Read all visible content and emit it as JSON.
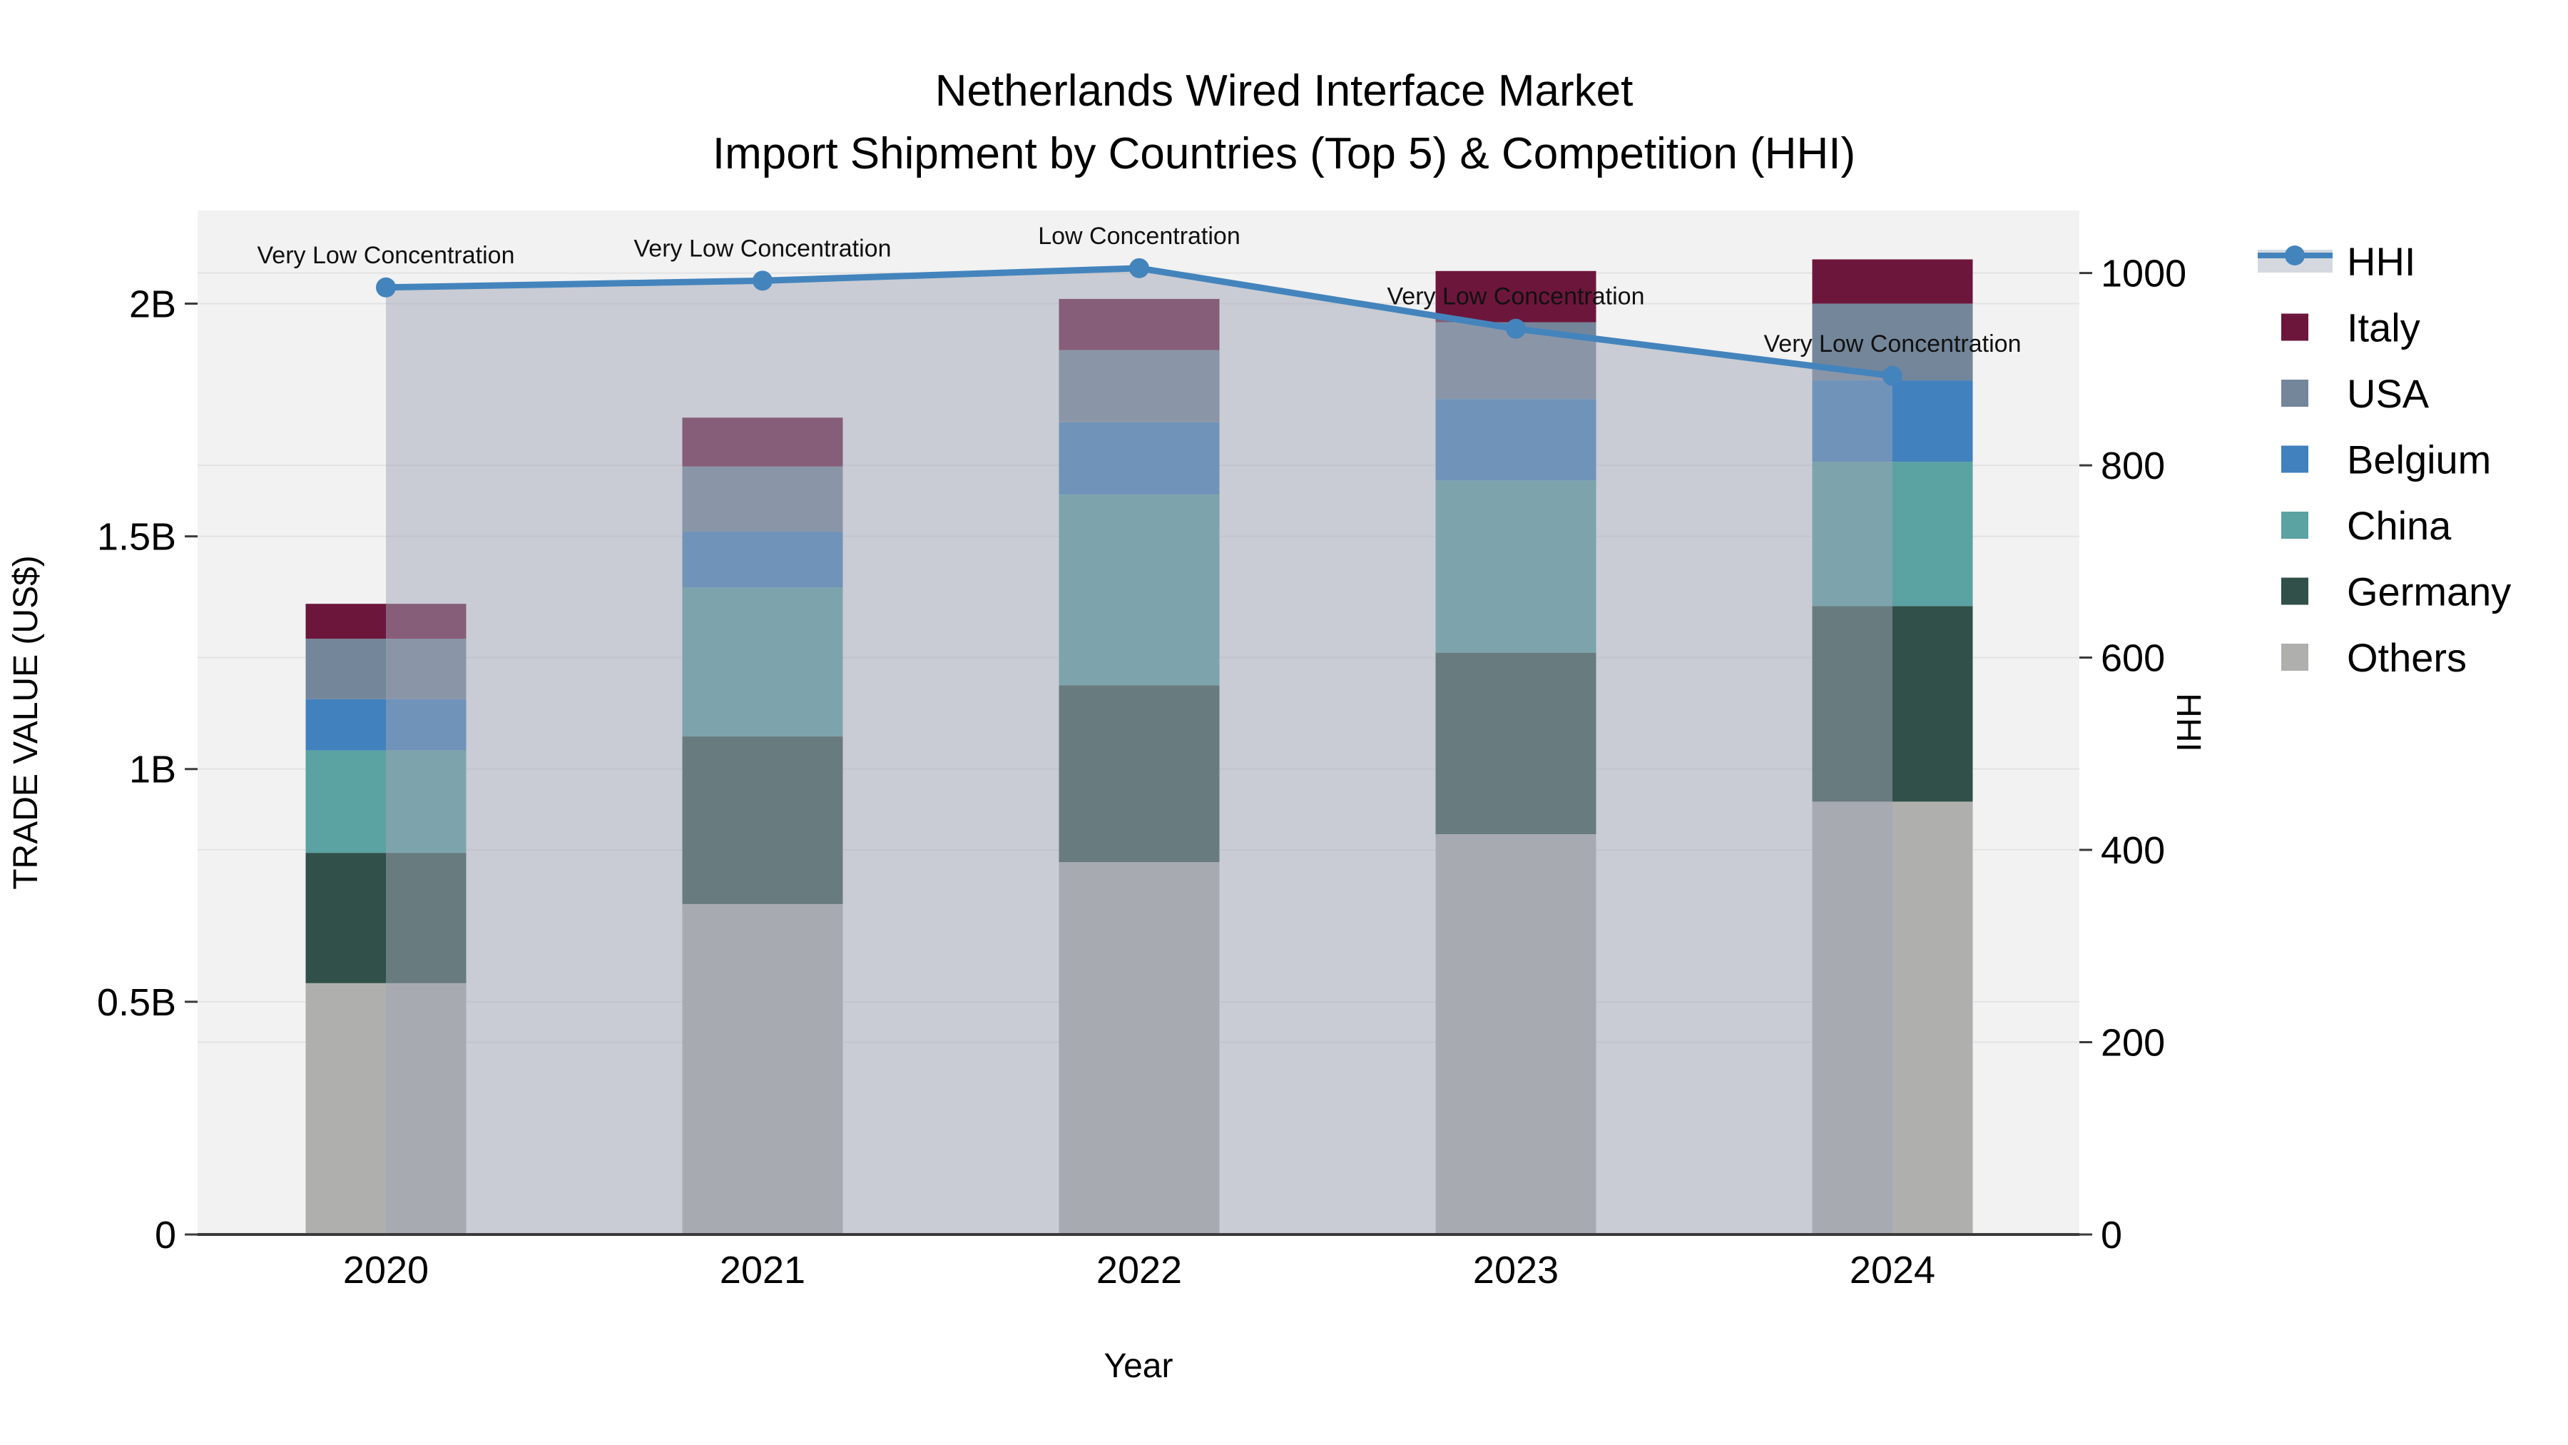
{
  "chart_data": {
    "type": "bar",
    "subtype": "stacked-bars-with-line-overlay",
    "title_line1": "Netherlands Wired Interface Market",
    "title_line2": "Import Shipment by Countries (Top 5) & Competition (HHI)",
    "xlabel": "Year",
    "ylabel_left": "TRADE VALUE (US$)",
    "ylabel_right": "HHI",
    "categories": [
      "2020",
      "2021",
      "2022",
      "2023",
      "2024"
    ],
    "bar_unit": "billion US$",
    "bar_series": [
      {
        "name": "Others",
        "color": "#afb0ad",
        "values": [
          0.54,
          0.71,
          0.8,
          0.86,
          0.93
        ]
      },
      {
        "name": "Germany",
        "color": "#305049",
        "values": [
          0.28,
          0.36,
          0.38,
          0.39,
          0.42
        ]
      },
      {
        "name": "China",
        "color": "#5ba2a2",
        "values": [
          0.22,
          0.32,
          0.41,
          0.37,
          0.31
        ]
      },
      {
        "name": "Belgium",
        "color": "#4181bd",
        "values": [
          0.11,
          0.12,
          0.155,
          0.175,
          0.175
        ]
      },
      {
        "name": "USA",
        "color": "#74869a",
        "values": [
          0.13,
          0.14,
          0.155,
          0.165,
          0.165
        ]
      },
      {
        "name": "Italy",
        "color": "#6d163c",
        "values": [
          0.075,
          0.105,
          0.11,
          0.11,
          0.095
        ]
      }
    ],
    "line_series": {
      "name": "HHI",
      "color": "#4484bd",
      "area_fill_color": "rgba(160,166,182,0.5)",
      "values": [
        985,
        992,
        1005,
        942,
        893
      ]
    },
    "annotations": [
      "Very Low Concentration",
      "Very Low Concentration",
      "Low Concentration",
      "Very Low Concentration",
      "Very Low Concentration"
    ],
    "yaxis_left": {
      "ticks": [
        "0",
        "0.5B",
        "1B",
        "1.5B",
        "2B"
      ],
      "tick_values": [
        0,
        0.5,
        1,
        1.5,
        2
      ],
      "range": [
        0,
        2.2
      ]
    },
    "yaxis_right": {
      "ticks": [
        "0",
        "200",
        "400",
        "600",
        "800",
        "1000"
      ],
      "tick_values": [
        0,
        200,
        400,
        600,
        800,
        1000
      ],
      "range": [
        0,
        1065
      ]
    },
    "legend": [
      "HHI",
      "Italy",
      "USA",
      "Belgium",
      "China",
      "Germany",
      "Others"
    ],
    "legend_position": "right",
    "grid": true,
    "colors": {
      "plot_background": "#f2f2f2",
      "gridline": "#e3e3e3",
      "axis_line": "#3a3a3a",
      "hhi_legend_band": "#d5d9df"
    }
  }
}
